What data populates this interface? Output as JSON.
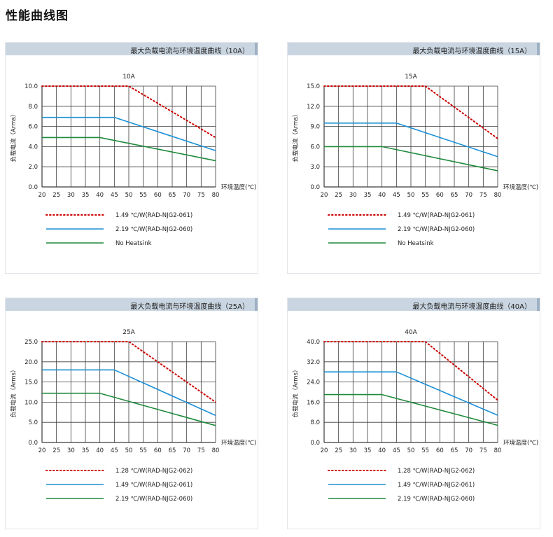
{
  "page": {
    "title": "性能曲线图"
  },
  "common": {
    "ylabel": "负载电流（Arms）",
    "xlabel": "环境温度(℃)",
    "colors": {
      "red": "#cc0000",
      "blue": "#1a8fd6",
      "green": "#1f8a3c",
      "grid": "#3a3a3a"
    }
  },
  "chart_data": [
    {
      "type": "line",
      "header": "最大负载电流与环境温度曲线（10A）",
      "title": "10A",
      "xlabel": "环境温度(℃)",
      "ylabel": "负载电流（Arms）",
      "xlim": [
        20,
        80
      ],
      "ylim": [
        0,
        10
      ],
      "xticks": [
        20,
        25,
        30,
        35,
        40,
        45,
        50,
        55,
        60,
        65,
        70,
        75,
        80
      ],
      "yticks": [
        0,
        2,
        4,
        6,
        8,
        10
      ],
      "ytick_labels": [
        "0.0",
        "2.0",
        "4.0",
        "6.0",
        "8.0",
        "10.0"
      ],
      "grid": true,
      "series": [
        {
          "name": "1.49 ℃/W(RAD-NJG2-061)",
          "style": "dotted",
          "color": "#cc0000",
          "x": [
            20,
            50,
            80
          ],
          "y": [
            10,
            10,
            4.9
          ]
        },
        {
          "name": "2.19 ℃/W(RAD-NJG2-060)",
          "style": "solid",
          "color": "#1a8fd6",
          "x": [
            20,
            45,
            80
          ],
          "y": [
            6.9,
            6.9,
            3.6
          ]
        },
        {
          "name": "No Heatsink",
          "style": "solid",
          "color": "#1f8a3c",
          "x": [
            20,
            40,
            80
          ],
          "y": [
            4.9,
            4.9,
            2.6
          ]
        }
      ]
    },
    {
      "type": "line",
      "header": "最大负载电流与环境温度曲线（15A）",
      "title": "15A",
      "xlabel": "环境温度(℃)",
      "ylabel": "负载电流（Arms）",
      "xlim": [
        20,
        80
      ],
      "ylim": [
        0,
        15
      ],
      "xticks": [
        20,
        25,
        30,
        35,
        40,
        45,
        50,
        55,
        60,
        65,
        70,
        75,
        80
      ],
      "yticks": [
        0,
        3,
        6,
        9,
        12,
        15
      ],
      "ytick_labels": [
        "0.0",
        "3.0",
        "6.0",
        "9.0",
        "12.0",
        "15.0"
      ],
      "grid": true,
      "series": [
        {
          "name": "1.49 ℃/W(RAD-NJG2-061)",
          "style": "dotted",
          "color": "#cc0000",
          "x": [
            20,
            55,
            80
          ],
          "y": [
            15,
            15,
            7.2
          ]
        },
        {
          "name": "2.19 ℃/W(RAD-NJG2-060)",
          "style": "solid",
          "color": "#1a8fd6",
          "x": [
            20,
            45,
            80
          ],
          "y": [
            9.5,
            9.5,
            4.5
          ]
        },
        {
          "name": "No Heatsink",
          "style": "solid",
          "color": "#1f8a3c",
          "x": [
            20,
            40,
            80
          ],
          "y": [
            6,
            6,
            2.4
          ]
        }
      ]
    },
    {
      "type": "line",
      "header": "最大负载电流与环境温度曲线（25A）",
      "title": "25A",
      "xlabel": "环境温度(℃)",
      "ylabel": "负载电流（Arms）",
      "xlim": [
        20,
        80
      ],
      "ylim": [
        0,
        25
      ],
      "xticks": [
        20,
        25,
        30,
        35,
        40,
        45,
        50,
        55,
        60,
        65,
        70,
        75,
        80
      ],
      "yticks": [
        0,
        5,
        10,
        15,
        20,
        25
      ],
      "ytick_labels": [
        "0.0",
        "5.0",
        "10.0",
        "15.0",
        "20.0",
        "25.0"
      ],
      "grid": true,
      "series": [
        {
          "name": "1.28 ℃/W(RAD-NJG2-062)",
          "style": "dotted",
          "color": "#cc0000",
          "x": [
            20,
            50,
            80
          ],
          "y": [
            25,
            25,
            10
          ]
        },
        {
          "name": "1.49 ℃/W(RAD-NJG2-061)",
          "style": "solid",
          "color": "#1a8fd6",
          "x": [
            20,
            45,
            80
          ],
          "y": [
            18,
            18,
            6.7
          ]
        },
        {
          "name": "2.19 ℃/W(RAD-NJG2-060)",
          "style": "solid",
          "color": "#1f8a3c",
          "x": [
            20,
            40,
            80
          ],
          "y": [
            12.2,
            12.2,
            4.2
          ]
        }
      ]
    },
    {
      "type": "line",
      "header": "最大负载电流与环境温度曲线（40A）",
      "title": "40A",
      "xlabel": "环境温度(℃)",
      "ylabel": "负载电流（Arms）",
      "xlim": [
        20,
        80
      ],
      "ylim": [
        0,
        40
      ],
      "xticks": [
        20,
        25,
        30,
        35,
        40,
        45,
        50,
        55,
        60,
        65,
        70,
        75,
        80
      ],
      "yticks": [
        0,
        8,
        16,
        24,
        32,
        40
      ],
      "ytick_labels": [
        "0.0",
        "8.0",
        "16.0",
        "24.0",
        "32.0",
        "40.0"
      ],
      "grid": true,
      "series": [
        {
          "name": "1.28 ℃/W(RAD-NJG2-062)",
          "style": "dotted",
          "color": "#cc0000",
          "x": [
            20,
            55,
            80
          ],
          "y": [
            40,
            40,
            16.8
          ]
        },
        {
          "name": "1.49 ℃/W(RAD-NJG2-061)",
          "style": "solid",
          "color": "#1a8fd6",
          "x": [
            20,
            45,
            80
          ],
          "y": [
            28,
            28,
            10.8
          ]
        },
        {
          "name": "2.19 ℃/W(RAD-NJG2-060)",
          "style": "solid",
          "color": "#1f8a3c",
          "x": [
            20,
            40,
            80
          ],
          "y": [
            19,
            19,
            6.8
          ]
        }
      ]
    }
  ]
}
